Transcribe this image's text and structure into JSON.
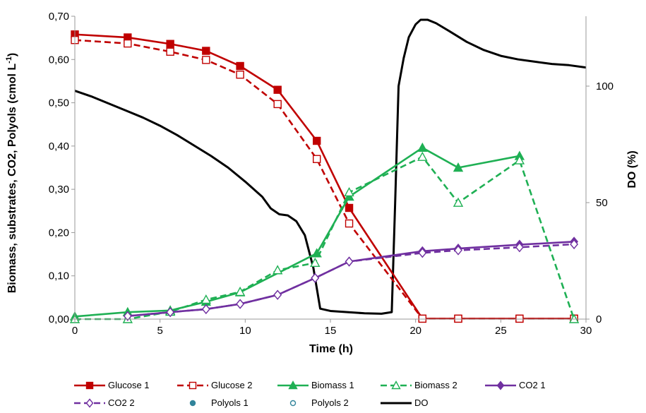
{
  "chart_data": {
    "type": "line",
    "xlabel": "Time (h)",
    "ylabel": "Biomass, substrates, CO2, Polyols (cmol L",
    "ylabel_sup": "-1",
    "ylabel_close": ")",
    "y2label": "DO (%)",
    "xlim": [
      0,
      30
    ],
    "ylim": [
      0,
      0.7
    ],
    "y2lim": [
      0,
      130
    ],
    "x_ticks": [
      0,
      5,
      10,
      15,
      20,
      25,
      30
    ],
    "x_tick_labels": [
      "0",
      "5",
      "10",
      "15",
      "20",
      "25",
      "30"
    ],
    "y_ticks": [
      0,
      0.1,
      0.2,
      0.3,
      0.4,
      0.5,
      0.6,
      0.7
    ],
    "y_tick_labels": [
      "0,00",
      "0,10",
      "0,20",
      "0,30",
      "0,40",
      "0,50",
      "0,60",
      "0,70"
    ],
    "y2_ticks": [
      0,
      50,
      100
    ],
    "y2_tick_labels": [
      "0",
      "50",
      "100"
    ],
    "grid": false,
    "legend_position": "bottom",
    "series": [
      {
        "name": "Glucose 1",
        "axis": "left",
        "color": "#c00000",
        "dash": false,
        "marker": "square",
        "filled": true,
        "x": [
          0,
          3.1,
          5.6,
          7.7,
          9.7,
          11.9,
          14.2,
          16.1,
          20.4,
          22.5,
          26.1,
          29.3
        ],
        "y": [
          0.658,
          0.651,
          0.636,
          0.62,
          0.585,
          0.53,
          0.412,
          0.257,
          0.001,
          0.001,
          0.001,
          0.001
        ]
      },
      {
        "name": "Glucose 2",
        "axis": "left",
        "color": "#c00000",
        "dash": true,
        "marker": "square",
        "filled": false,
        "x": [
          0,
          3.1,
          5.6,
          7.7,
          9.7,
          11.9,
          14.2,
          16.1,
          20.4,
          22.5,
          26.1,
          29.3
        ],
        "y": [
          0.645,
          0.637,
          0.618,
          0.599,
          0.565,
          0.497,
          0.37,
          0.221,
          0.001,
          0.001,
          0.001,
          0.001
        ]
      },
      {
        "name": "Biomass 1",
        "axis": "left",
        "color": "#1fb054",
        "dash": false,
        "marker": "triangle",
        "filled": true,
        "x": [
          0,
          3.1,
          5.6,
          7.7,
          9.7,
          14.2,
          16.1,
          20.4,
          22.5,
          26.1
        ],
        "y": [
          0.006,
          0.016,
          0.02,
          0.04,
          0.062,
          0.152,
          0.283,
          0.396,
          0.35,
          0.377
        ]
      },
      {
        "name": "Biomass 2",
        "axis": "left",
        "color": "#1fb054",
        "dash": true,
        "marker": "triangle",
        "filled": false,
        "x": [
          0,
          3.1,
          5.6,
          7.7,
          9.7,
          11.9,
          14.1,
          16.1,
          20.4,
          22.5,
          26.1,
          29.3
        ],
        "y": [
          0.0,
          0.0,
          0.017,
          0.045,
          0.063,
          0.113,
          0.13,
          0.293,
          0.375,
          0.269,
          0.367,
          0.0
        ]
      },
      {
        "name": "CO2 1",
        "axis": "left",
        "color": "#7030a0",
        "dash": false,
        "marker": "diamond",
        "filled": true,
        "x": [
          3.1,
          5.6,
          7.7,
          9.7,
          11.9,
          14.1,
          16.1,
          20.4,
          22.5,
          26.1,
          29.3
        ],
        "y": [
          0.007,
          0.016,
          0.023,
          0.035,
          0.056,
          0.095,
          0.133,
          0.157,
          0.163,
          0.172,
          0.179
        ]
      },
      {
        "name": "CO2 2",
        "axis": "left",
        "color": "#7030a0",
        "dash": true,
        "marker": "diamond",
        "filled": false,
        "x": [
          3.1,
          5.6,
          7.7,
          9.7,
          11.9,
          14.1,
          16.1,
          20.4,
          22.5,
          26.1,
          29.3
        ],
        "y": [
          0.007,
          0.016,
          0.023,
          0.035,
          0.056,
          0.095,
          0.133,
          0.153,
          0.159,
          0.166,
          0.173
        ]
      },
      {
        "name": "Polyols 1",
        "axis": "left",
        "color": "#31849b",
        "dash": false,
        "marker": "circle",
        "filled": true,
        "nolines": true,
        "x": [],
        "y": []
      },
      {
        "name": "Polyols 2",
        "axis": "left",
        "color": "#31849b",
        "dash": false,
        "marker": "circle",
        "filled": false,
        "nolines": true,
        "x": [],
        "y": []
      },
      {
        "name": "DO",
        "axis": "right",
        "color": "#000000",
        "dash": false,
        "marker": "none",
        "filled": false,
        "thick": true,
        "x": [
          0,
          1,
          2,
          3,
          4,
          5,
          6,
          7,
          8,
          9,
          10,
          11,
          11.5,
          12,
          12.5,
          13,
          13.5,
          14,
          14.4,
          15,
          16,
          17,
          18,
          18.6,
          18.8,
          19.0,
          19.3,
          19.6,
          20.0,
          20.3,
          20.7,
          21.2,
          22,
          23,
          24,
          25,
          26,
          27,
          28,
          29,
          30
        ],
        "y": [
          98,
          95.5,
          92.5,
          89.5,
          86.5,
          83,
          79,
          74.5,
          70,
          65,
          59,
          52.5,
          47.5,
          45,
          44.5,
          42,
          36,
          22,
          4.5,
          3.5,
          3,
          2.5,
          2.3,
          3,
          50,
          100,
          112,
          121,
          126.5,
          128.5,
          128.5,
          127,
          123.5,
          119,
          115.5,
          113,
          111.5,
          110.5,
          109.5,
          109,
          108
        ]
      }
    ]
  }
}
